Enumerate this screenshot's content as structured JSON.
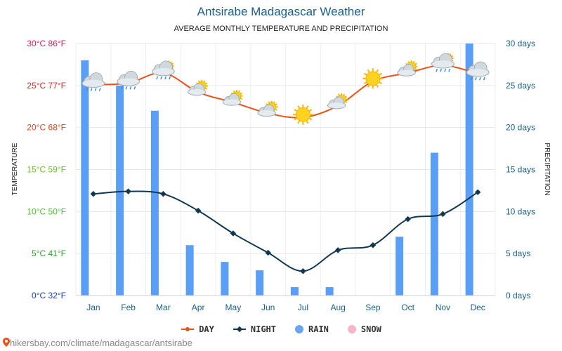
{
  "chart_data": {
    "type": "bar+line",
    "title": "Antsirabe Madagascar Weather",
    "subtitle": "AVERAGE MONTHLY TEMPERATURE AND PRECIPITATION",
    "ylabel_left": "TEMPERATURE",
    "ylabel_right": "PRECIPITATION",
    "categories": [
      "Jan",
      "Feb",
      "Mar",
      "Apr",
      "May",
      "Jun",
      "Jul",
      "Aug",
      "Sep",
      "Oct",
      "Nov",
      "Dec"
    ],
    "y_left_ticks": [
      "0°C 32°F",
      "5°C 41°F",
      "10°C 50°F",
      "15°C 59°F",
      "20°C 68°F",
      "25°C 77°F",
      "30°C 86°F"
    ],
    "y_left_tick_colors": [
      "#1b3fbf",
      "#2e9e2e",
      "#4fbf2a",
      "#6cbf2a",
      "#d84a2a",
      "#d8302a",
      "#d81e5b"
    ],
    "y_right_ticks": [
      "0 days",
      "5 days",
      "10 days",
      "15 days",
      "20 days",
      "25 days",
      "30 days"
    ],
    "ylim_left": [
      0,
      30
    ],
    "ylim_right": [
      0,
      30
    ],
    "grid": true,
    "series": [
      {
        "name": "DAY",
        "kind": "line",
        "color": "#e8531c",
        "values": [
          25.1,
          25.3,
          26.5,
          24.2,
          23.0,
          21.7,
          21.2,
          22.6,
          25.5,
          26.5,
          27.4,
          26.4
        ]
      },
      {
        "name": "NIGHT",
        "kind": "line",
        "color": "#11384f",
        "values": [
          12.1,
          12.4,
          12.1,
          10.1,
          7.4,
          5.1,
          2.9,
          5.4,
          6.0,
          9.1,
          9.7,
          12.3
        ]
      },
      {
        "name": "RAIN",
        "kind": "bar",
        "color": "#5b9ef5",
        "values": [
          28,
          25,
          22,
          6,
          4,
          3,
          1,
          1,
          0,
          7,
          17,
          30
        ]
      },
      {
        "name": "SNOW",
        "kind": "bar",
        "color": "#f7b6c8",
        "values": [
          0,
          0,
          0,
          0,
          0,
          0,
          0,
          0,
          0,
          0,
          0,
          0
        ]
      }
    ],
    "weather_icons": [
      "cloud-rain-icon",
      "cloud-rain-icon",
      "sun-cloud-rain-icon",
      "sun-cloud-icon",
      "sun-cloud-icon",
      "sun-cloud-icon",
      "sun-icon",
      "sun-cloud-icon",
      "sun-icon",
      "sun-cloud-icon",
      "sun-cloud-rain-icon",
      "cloud-rain-icon"
    ],
    "legend_position": "bottom-center"
  },
  "source_text": "hikersbay.com/climate/madagascar/antsirabe"
}
